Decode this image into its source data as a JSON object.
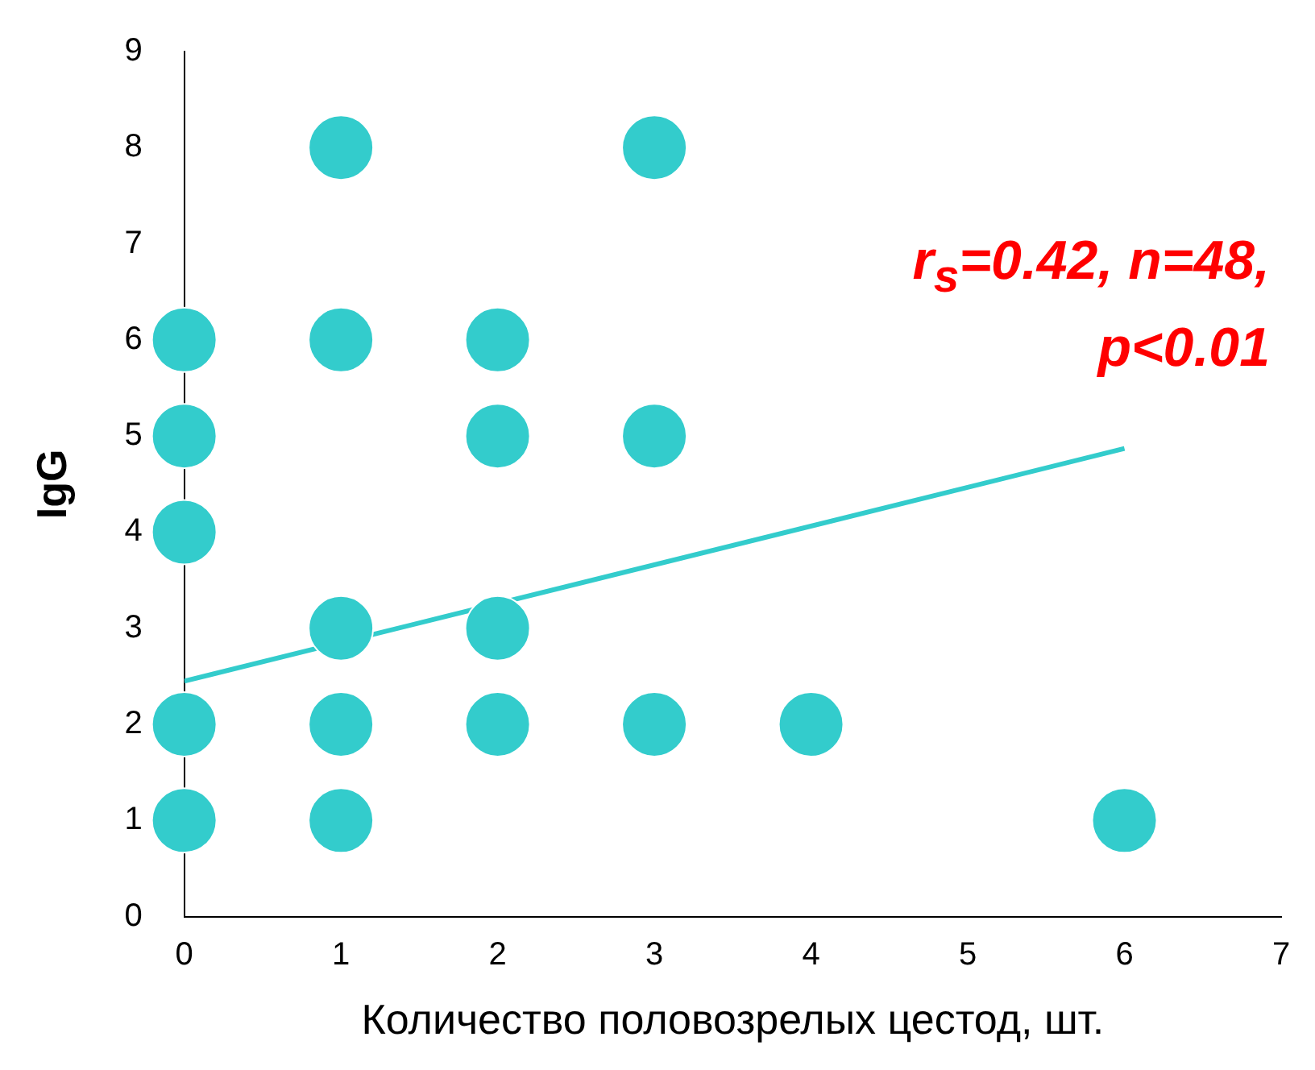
{
  "chart_data": {
    "type": "scatter",
    "xlabel": "Количество половозрелых цестод, шт.",
    "ylabel": "IgG",
    "annotations": [
      "r$_{s}$=0.42, n=48, p<0.01"
    ],
    "xlim": [
      0,
      7
    ],
    "xticks": [
      0,
      1,
      2,
      3,
      4,
      5,
      6,
      7
    ],
    "ylim": [
      0,
      9
    ],
    "yticks": [
      0,
      1,
      2,
      3,
      4,
      5,
      6,
      7,
      8,
      9
    ],
    "grid": false,
    "legend": false,
    "series": [
      {
        "color": "#33cccc",
        "marker": "circle",
        "x": [
          0,
          0,
          0,
          0,
          0,
          1,
          1,
          1,
          1,
          1,
          2,
          2,
          2,
          2,
          3,
          3,
          3,
          4,
          6
        ],
        "values": [
          6,
          5,
          4,
          2,
          1,
          8,
          6,
          3,
          2,
          1,
          6,
          5,
          3,
          2,
          8,
          5,
          2,
          2,
          1
        ]
      },
      {
        "type": "line",
        "marker": "none",
        "color": "#33cccc",
        "x": [
          0,
          6
        ],
        "values": [
          2.45,
          4.87
        ]
      }
    ]
  }
}
